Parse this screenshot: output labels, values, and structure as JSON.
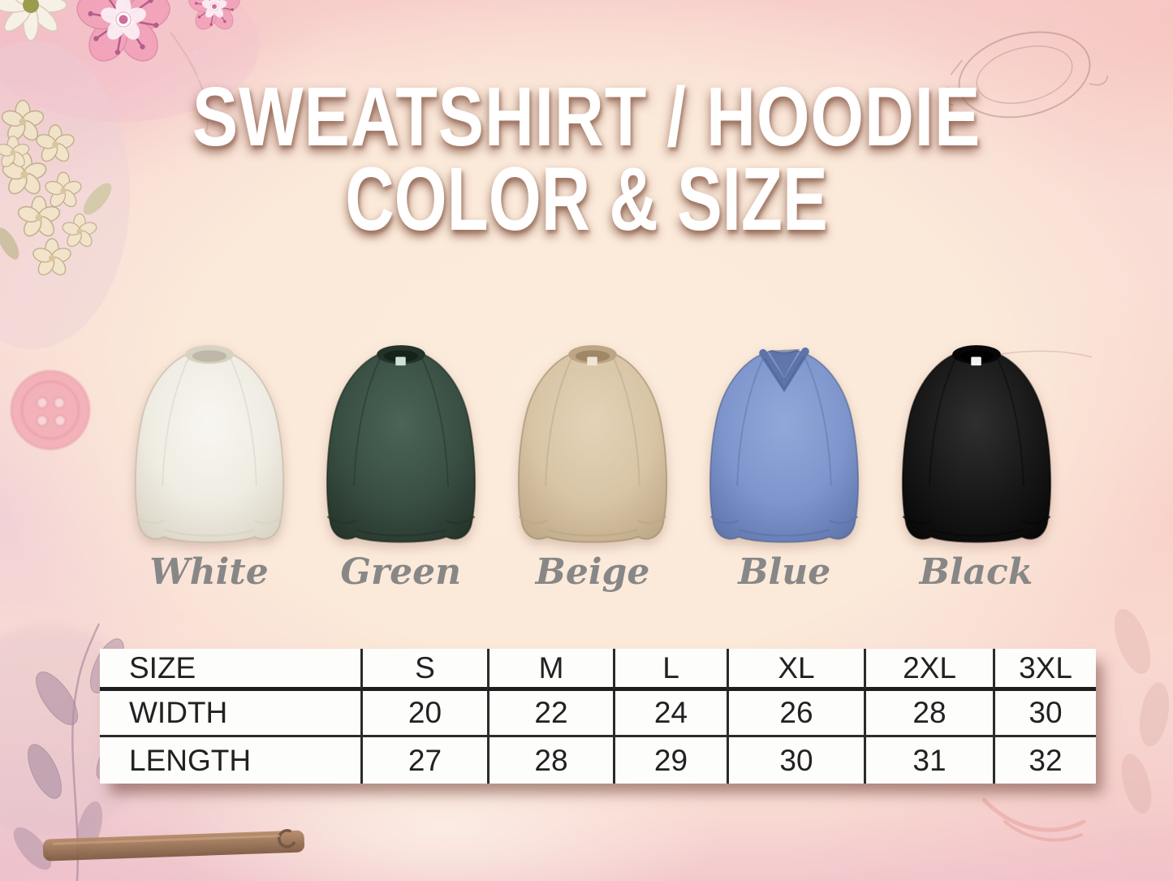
{
  "title": {
    "line1": "SWEATSHIRT / HOODIE",
    "line2": "COLOR & SIZE",
    "text_color": "#ffffff",
    "shadow_color": "#8d5f4e"
  },
  "colorways": [
    {
      "label": "White",
      "neck": "crew",
      "light": "#f8f6f0",
      "main": "#efece3",
      "shade": "#d8d2c3",
      "dark": "#b9b2a0",
      "tag": null
    },
    {
      "label": "Green",
      "neck": "crew",
      "light": "#4a6456",
      "main": "#3a4f44",
      "shade": "#243329",
      "dark": "#131f18",
      "tag": "#cfe0d4"
    },
    {
      "label": "Beige",
      "neck": "crew",
      "light": "#e4d3b8",
      "main": "#d8c5a6",
      "shade": "#bca685",
      "dark": "#97815f",
      "tag": "#efe7d6"
    },
    {
      "label": "Blue",
      "neck": "vneck",
      "light": "#91a8da",
      "main": "#7e96cc",
      "shade": "#5d74ab",
      "dark": "#45588a",
      "tag": null
    },
    {
      "label": "Black",
      "neck": "crew",
      "light": "#2f2f2f",
      "main": "#181818",
      "shade": "#070707",
      "dark": "#000000",
      "tag": "#f2f2f2"
    }
  ],
  "label_color": "#878787",
  "size_table": {
    "columns": [
      "SIZE",
      "S",
      "M",
      "L",
      "XL",
      "2XL",
      "3XL"
    ],
    "rows": [
      {
        "label": "WIDTH",
        "values": [
          "20",
          "22",
          "24",
          "26",
          "28",
          "30"
        ]
      },
      {
        "label": "LENGTH",
        "values": [
          "27",
          "28",
          "29",
          "30",
          "31",
          "32"
        ]
      }
    ]
  },
  "chart_data": {
    "type": "table",
    "title": "Sweatshirt / Hoodie Color & Size",
    "columns": [
      "SIZE",
      "S",
      "M",
      "L",
      "XL",
      "2XL",
      "3XL"
    ],
    "rows": [
      [
        "WIDTH",
        20,
        22,
        24,
        26,
        28,
        30
      ],
      [
        "LENGTH",
        27,
        28,
        29,
        30,
        31,
        32
      ]
    ],
    "color_options": [
      "White",
      "Green",
      "Beige",
      "Blue",
      "Black"
    ]
  },
  "decorations": {
    "top_left": "flower-cluster",
    "top_right": "ornate-oval-sketch",
    "left": "pink-sewing-button",
    "bottom_left": "watercolor-leaves-and-wooden-shelf",
    "bottom_right": "arc-doodles-and-leaves"
  }
}
